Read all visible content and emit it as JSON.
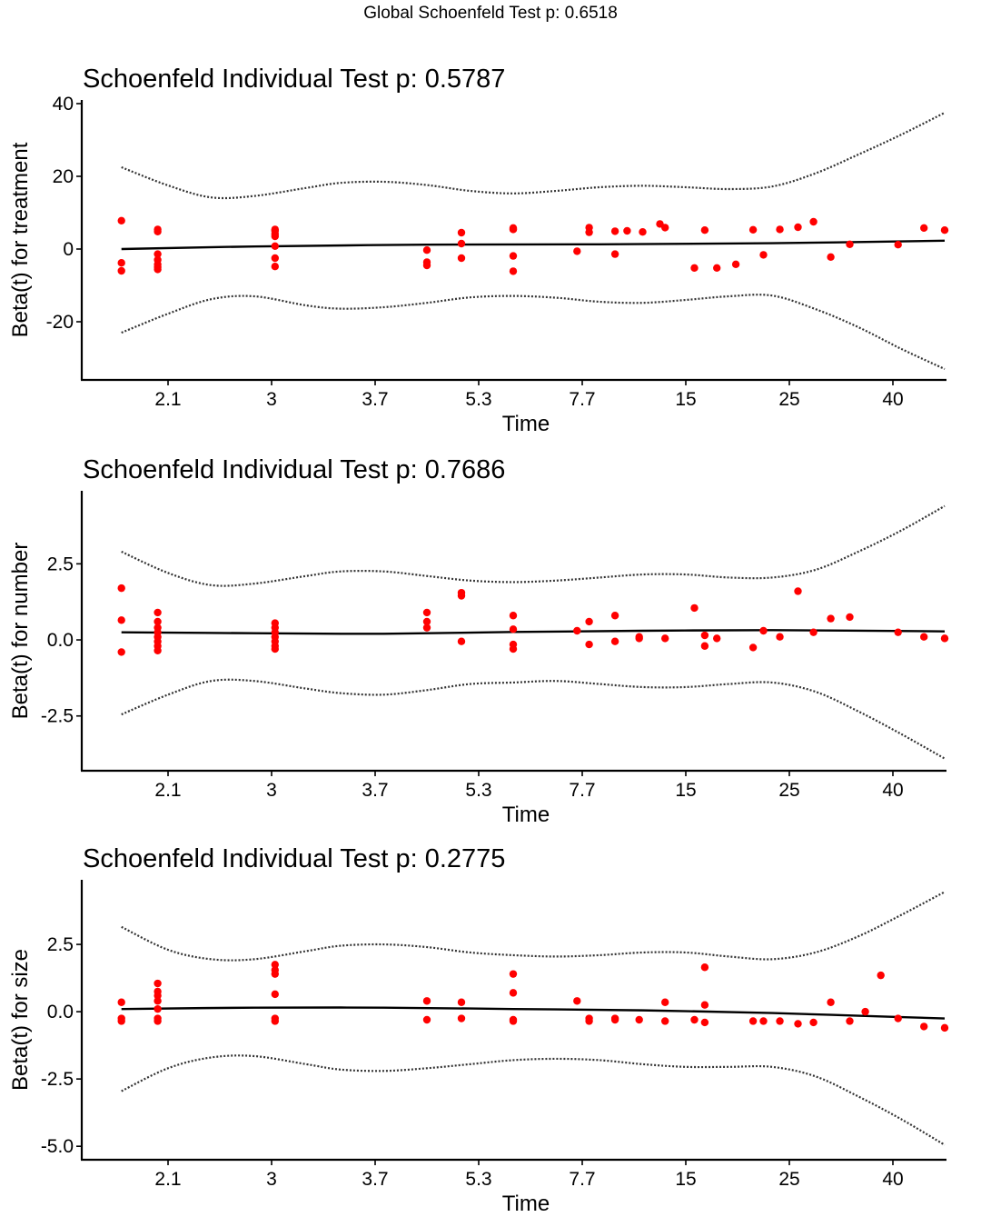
{
  "global_title": "Global Schoenfeld Test p: 0.6518",
  "colors": {
    "points": "#ff0000",
    "fit": "#000000",
    "bands": "#333333",
    "axis": "#000000"
  },
  "chart_data": [
    {
      "type": "scatter",
      "title": "Schoenfeld Individual Test p: 0.5787",
      "xlabel": "Time",
      "ylabel": "Beta(t) for treatment",
      "ylim": [
        -36,
        41
      ],
      "yticks": [
        40,
        20,
        0,
        -20
      ],
      "ytick_labels": [
        "40",
        "20",
        "0",
        "-20"
      ],
      "xlim": [
        0,
        1
      ],
      "xticks": [
        0.1,
        0.22,
        0.34,
        0.46,
        0.58,
        0.7,
        0.82,
        0.94
      ],
      "xtick_labels": [
        "2.1",
        "3",
        "3.7",
        "5.3",
        "7.7",
        "15",
        "25",
        "40"
      ],
      "series": [
        {
          "name": "fit",
          "style": "solid",
          "x": [
            0.046,
            0.2,
            0.4,
            0.6,
            0.8,
            1.0
          ],
          "y": [
            0,
            0.7,
            1.2,
            1.3,
            1.6,
            2.3
          ]
        },
        {
          "name": "upper",
          "style": "dotted",
          "x": [
            0.046,
            0.1,
            0.15,
            0.2,
            0.26,
            0.3,
            0.35,
            0.4,
            0.45,
            0.5,
            0.55,
            0.6,
            0.65,
            0.7,
            0.75,
            0.8,
            0.85,
            0.9,
            0.95,
            1.0
          ],
          "y": [
            22.5,
            17.5,
            14.2,
            14.6,
            16.8,
            18.2,
            18.5,
            17.6,
            16.0,
            15.3,
            16.0,
            17.0,
            17.4,
            17.0,
            16.5,
            17.2,
            20.8,
            26.0,
            31.5,
            37.5
          ]
        },
        {
          "name": "lower",
          "style": "dotted",
          "x": [
            0.046,
            0.1,
            0.15,
            0.2,
            0.26,
            0.3,
            0.35,
            0.4,
            0.45,
            0.5,
            0.55,
            0.6,
            0.65,
            0.7,
            0.75,
            0.8,
            0.85,
            0.9,
            0.95,
            1.0
          ],
          "y": [
            -23,
            -17.8,
            -13.8,
            -13.0,
            -15.5,
            -16.4,
            -16.0,
            -14.8,
            -13.3,
            -12.9,
            -13.4,
            -14.5,
            -14.8,
            -14.0,
            -13.0,
            -12.8,
            -16.5,
            -21.5,
            -27.5,
            -33.0
          ]
        },
        {
          "name": "residuals",
          "style": "points",
          "x": [
            0.046,
            0.046,
            0.046,
            0.088,
            0.088,
            0.088,
            0.088,
            0.088,
            0.088,
            0.088,
            0.224,
            0.224,
            0.224,
            0.224,
            0.224,
            0.224,
            0.224,
            0.4,
            0.4,
            0.4,
            0.44,
            0.44,
            0.44,
            0.5,
            0.5,
            0.5,
            0.5,
            0.5,
            0.574,
            0.588,
            0.588,
            0.618,
            0.618,
            0.632,
            0.65,
            0.67,
            0.676,
            0.71,
            0.722,
            0.736,
            0.758,
            0.778,
            0.79,
            0.809,
            0.83,
            0.848,
            0.868,
            0.89,
            0.946,
            0.976,
            1.0
          ],
          "y": [
            7.8,
            -3.8,
            -6.0,
            5.4,
            4.8,
            -1.4,
            -3.0,
            -4.2,
            -5.0,
            -5.6,
            5.4,
            5.0,
            4.2,
            3.5,
            0.8,
            -2.5,
            -4.8,
            -0.3,
            -3.6,
            -4.5,
            4.5,
            1.5,
            -2.5,
            5.8,
            5.4,
            -1.9,
            -6.1,
            5.5,
            -0.6,
            5.9,
            4.6,
            4.9,
            -1.4,
            5.0,
            4.7,
            6.9,
            5.9,
            -5.2,
            5.2,
            -5.2,
            -4.2,
            5.3,
            -1.6,
            5.4,
            6.0,
            7.5,
            -2.2,
            1.3,
            1.2,
            5.8,
            5.2
          ]
        }
      ]
    },
    {
      "type": "scatter",
      "title": "Schoenfeld Individual Test p: 0.7686",
      "xlabel": "Time",
      "ylabel": "Beta(t) for number",
      "ylim": [
        -4.3,
        4.9
      ],
      "yticks": [
        2.5,
        0.0,
        -2.5
      ],
      "ytick_labels": [
        "2.5",
        "0.0",
        "-2.5"
      ],
      "xlim": [
        0,
        1
      ],
      "xticks": [
        0.1,
        0.22,
        0.34,
        0.46,
        0.58,
        0.7,
        0.82,
        0.94
      ],
      "xtick_labels": [
        "2.1",
        "3",
        "3.7",
        "5.3",
        "7.7",
        "15",
        "25",
        "40"
      ],
      "series": [
        {
          "name": "fit",
          "style": "solid",
          "x": [
            0.046,
            0.2,
            0.35,
            0.5,
            0.65,
            0.8,
            1.0
          ],
          "y": [
            0.25,
            0.22,
            0.2,
            0.26,
            0.3,
            0.32,
            0.28
          ]
        },
        {
          "name": "upper",
          "style": "dotted",
          "x": [
            0.046,
            0.1,
            0.15,
            0.2,
            0.26,
            0.3,
            0.35,
            0.4,
            0.45,
            0.5,
            0.55,
            0.6,
            0.65,
            0.7,
            0.75,
            0.8,
            0.85,
            0.9,
            0.95,
            1.0
          ],
          "y": [
            2.9,
            2.2,
            1.8,
            1.85,
            2.1,
            2.25,
            2.25,
            2.1,
            1.95,
            1.9,
            1.95,
            2.05,
            2.15,
            2.15,
            2.05,
            2.05,
            2.3,
            2.9,
            3.6,
            4.4
          ]
        },
        {
          "name": "lower",
          "style": "dotted",
          "x": [
            0.046,
            0.1,
            0.15,
            0.2,
            0.26,
            0.3,
            0.35,
            0.4,
            0.45,
            0.5,
            0.55,
            0.6,
            0.65,
            0.7,
            0.75,
            0.8,
            0.85,
            0.9,
            0.95,
            1.0
          ],
          "y": [
            -2.45,
            -1.8,
            -1.35,
            -1.35,
            -1.6,
            -1.75,
            -1.8,
            -1.65,
            -1.45,
            -1.4,
            -1.35,
            -1.45,
            -1.55,
            -1.55,
            -1.45,
            -1.4,
            -1.7,
            -2.35,
            -3.1,
            -3.9
          ]
        },
        {
          "name": "residuals",
          "style": "points",
          "x": [
            0.046,
            0.046,
            0.046,
            0.088,
            0.088,
            0.088,
            0.088,
            0.088,
            0.088,
            0.088,
            0.088,
            0.224,
            0.224,
            0.224,
            0.224,
            0.224,
            0.224,
            0.224,
            0.4,
            0.4,
            0.4,
            0.44,
            0.44,
            0.44,
            0.5,
            0.5,
            0.5,
            0.5,
            0.574,
            0.588,
            0.588,
            0.618,
            0.618,
            0.646,
            0.646,
            0.676,
            0.71,
            0.722,
            0.722,
            0.736,
            0.778,
            0.79,
            0.809,
            0.83,
            0.848,
            0.868,
            0.89,
            0.946,
            0.976,
            1.0
          ],
          "y": [
            1.7,
            0.65,
            -0.4,
            0.9,
            0.6,
            0.4,
            0.25,
            0.1,
            -0.05,
            -0.2,
            -0.35,
            0.55,
            0.4,
            0.25,
            0.1,
            -0.05,
            -0.2,
            -0.3,
            0.9,
            0.6,
            0.4,
            1.55,
            1.45,
            -0.05,
            0.8,
            0.35,
            -0.15,
            -0.3,
            0.3,
            0.6,
            -0.15,
            0.8,
            -0.05,
            0.1,
            0.05,
            0.05,
            1.05,
            0.15,
            -0.2,
            0.05,
            -0.25,
            0.3,
            0.1,
            1.6,
            0.25,
            0.7,
            0.75,
            0.25,
            0.1,
            0.05
          ]
        }
      ]
    },
    {
      "type": "scatter",
      "title": "Schoenfeld Individual Test p: 0.2775",
      "xlabel": "Time",
      "ylabel": "Beta(t) for size",
      "ylim": [
        -5.5,
        4.9
      ],
      "yticks": [
        2.5,
        0.0,
        -2.5,
        -5.0
      ],
      "ytick_labels": [
        "2.5",
        "0.0",
        "-2.5",
        "-5.0"
      ],
      "xlim": [
        0,
        1
      ],
      "xticks": [
        0.1,
        0.22,
        0.34,
        0.46,
        0.58,
        0.7,
        0.82,
        0.94
      ],
      "xtick_labels": [
        "2.1",
        "3",
        "3.7",
        "5.3",
        "7.7",
        "15",
        "25",
        "40"
      ],
      "series": [
        {
          "name": "fit",
          "style": "solid",
          "x": [
            0.046,
            0.2,
            0.35,
            0.5,
            0.65,
            0.8,
            0.9,
            1.0
          ],
          "y": [
            0.1,
            0.15,
            0.15,
            0.1,
            0.05,
            -0.05,
            -0.15,
            -0.25
          ]
        },
        {
          "name": "upper",
          "style": "dotted",
          "x": [
            0.046,
            0.1,
            0.15,
            0.2,
            0.26,
            0.3,
            0.35,
            0.4,
            0.45,
            0.5,
            0.55,
            0.6,
            0.65,
            0.7,
            0.75,
            0.8,
            0.85,
            0.9,
            0.95,
            1.0
          ],
          "y": [
            3.15,
            2.3,
            1.95,
            1.95,
            2.25,
            2.45,
            2.5,
            2.4,
            2.2,
            2.1,
            2.05,
            2.1,
            2.2,
            2.2,
            2.05,
            1.95,
            2.2,
            2.8,
            3.6,
            4.45
          ]
        },
        {
          "name": "lower",
          "style": "dotted",
          "x": [
            0.046,
            0.1,
            0.15,
            0.2,
            0.26,
            0.3,
            0.35,
            0.4,
            0.45,
            0.5,
            0.55,
            0.6,
            0.65,
            0.7,
            0.75,
            0.8,
            0.85,
            0.9,
            0.95,
            1.0
          ],
          "y": [
            -2.95,
            -2.1,
            -1.7,
            -1.65,
            -1.95,
            -2.15,
            -2.2,
            -2.1,
            -1.95,
            -1.8,
            -1.75,
            -1.8,
            -1.95,
            -2.05,
            -2.05,
            -2.05,
            -2.4,
            -3.15,
            -4.0,
            -4.95
          ]
        },
        {
          "name": "residuals",
          "style": "points",
          "x": [
            0.046,
            0.046,
            0.046,
            0.088,
            0.088,
            0.088,
            0.088,
            0.088,
            0.088,
            0.088,
            0.224,
            0.224,
            0.224,
            0.224,
            0.224,
            0.224,
            0.4,
            0.4,
            0.44,
            0.44,
            0.5,
            0.5,
            0.5,
            0.5,
            0.574,
            0.588,
            0.588,
            0.618,
            0.618,
            0.646,
            0.676,
            0.676,
            0.71,
            0.722,
            0.722,
            0.722,
            0.778,
            0.79,
            0.809,
            0.83,
            0.848,
            0.868,
            0.89,
            0.908,
            0.926,
            0.946,
            0.976,
            1.0
          ],
          "y": [
            0.35,
            -0.25,
            -0.35,
            1.05,
            0.75,
            0.6,
            0.4,
            0.1,
            -0.25,
            -0.35,
            1.75,
            1.55,
            1.4,
            0.65,
            -0.25,
            -0.35,
            0.4,
            -0.3,
            0.35,
            -0.25,
            1.4,
            0.7,
            -0.3,
            -0.35,
            0.4,
            -0.25,
            -0.35,
            -0.3,
            -0.25,
            -0.3,
            0.35,
            -0.35,
            -0.3,
            1.65,
            0.25,
            -0.4,
            -0.35,
            -0.35,
            -0.35,
            -0.45,
            -0.4,
            0.35,
            -0.35,
            0.0,
            1.35,
            -0.25,
            -0.55,
            -0.6
          ]
        }
      ]
    }
  ]
}
